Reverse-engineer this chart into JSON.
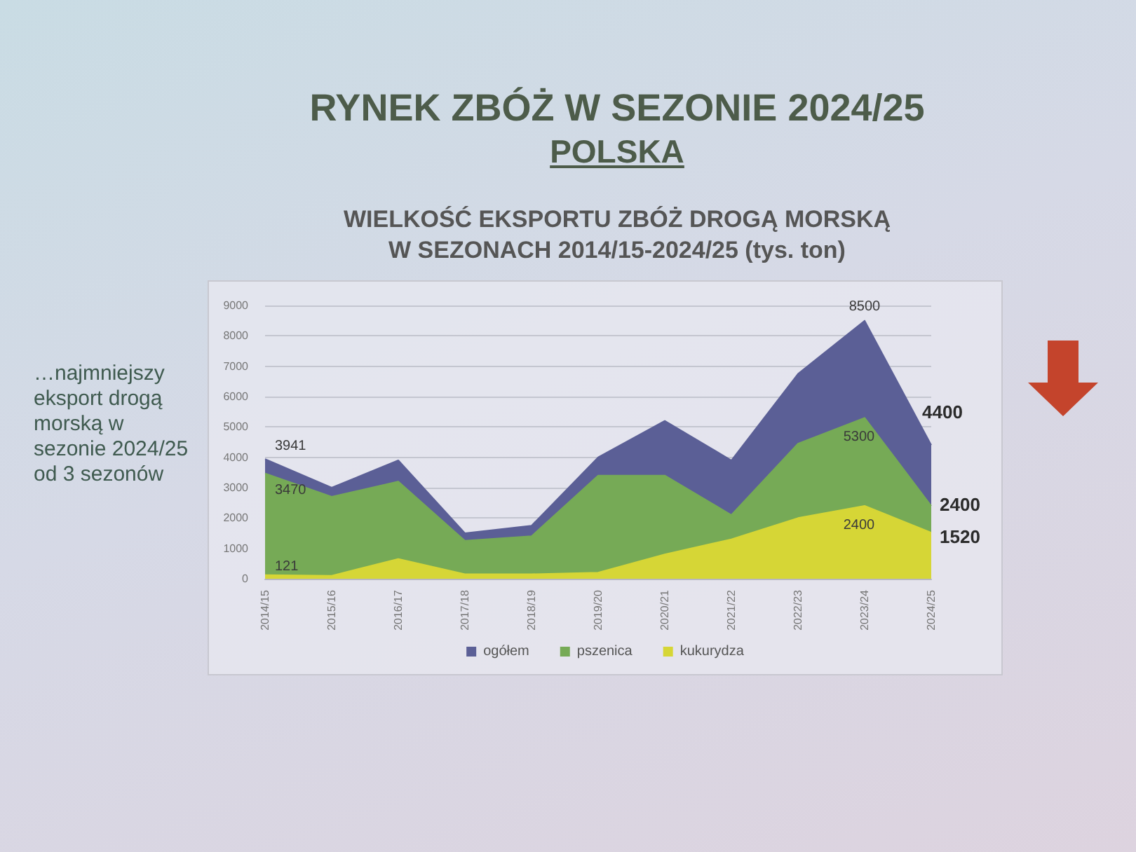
{
  "chart_data": {
    "type": "area",
    "title": "RYNEK ZBÓŻ W SEZONIE 2024/25",
    "subtitle": "POLSKA",
    "annotations": [
      "WIELKOŚĆ EKSPORTU ZBÓŻ DROGĄ MORSKĄ\nW SEZONACH 2014/15-2024/25 (tys. ton)",
      "…najmniejszy eksport drogą morską w sezonie 2024/25 od 3 sezonów"
    ],
    "categories": [
      "2014/15",
      "2015/16",
      "2016/17",
      "2017/18",
      "2018/19",
      "2019/20",
      "2020/21",
      "2021/22",
      "2022/23",
      "2023/24",
      "2024/25"
    ],
    "series": [
      {
        "name": "ogółem",
        "color": "#5b5f96",
        "values": [
          3941,
          3000,
          3900,
          1500,
          1750,
          4000,
          5200,
          3900,
          6750,
          8500,
          4400
        ],
        "value_labels": [
          "3941",
          null,
          null,
          null,
          null,
          null,
          null,
          null,
          null,
          "8500",
          "4400"
        ]
      },
      {
        "name": "pszenica",
        "color": "#76aa56",
        "values": [
          3470,
          2700,
          3200,
          1250,
          1400,
          3400,
          3400,
          2100,
          4450,
          5300,
          2400
        ],
        "value_labels": [
          "3470",
          null,
          null,
          null,
          null,
          null,
          null,
          null,
          null,
          "5300",
          "2400"
        ]
      },
      {
        "name": "kukurydza",
        "color": "#d6d636",
        "values": [
          121,
          100,
          650,
          150,
          150,
          200,
          800,
          1300,
          2000,
          2400,
          1520
        ],
        "value_labels": [
          "121",
          null,
          null,
          null,
          null,
          null,
          null,
          null,
          null,
          "2400",
          "1520"
        ]
      }
    ],
    "ylim": [
      0,
      9000
    ],
    "yticks": [
      0,
      1000,
      2000,
      3000,
      4000,
      5000,
      6000,
      7000,
      8000,
      9000
    ],
    "grid": "y",
    "legend": "bottom",
    "marker": "none"
  }
}
